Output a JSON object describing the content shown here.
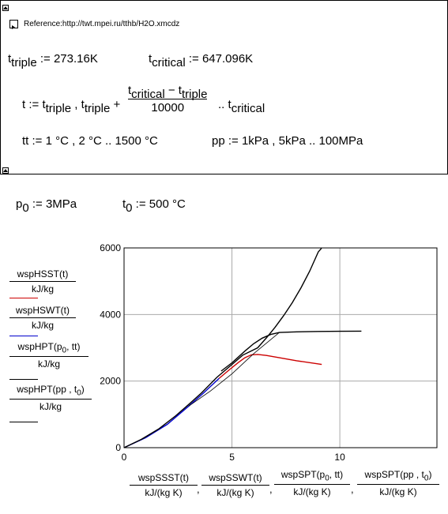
{
  "reference": {
    "label": "Reference:http://twt.mpei.ru/tthb/H2O.xmcdz"
  },
  "definitions": {
    "t_triple": {
      "name": "t",
      "sub": "triple",
      "op": " := ",
      "value": "273.16K"
    },
    "t_critical": {
      "name": "t",
      "sub": "critical",
      "op": " := ",
      "value": "647.096K"
    },
    "t_range": {
      "lhs": "t :=",
      "first_name": "t",
      "first_sub": "triple",
      "second_name": "t",
      "second_sub": "triple",
      "plus": "+",
      "num_a_name": "t",
      "num_a_sub": "critical",
      "minus": " − ",
      "num_b_name": "t",
      "num_b_sub": "triple",
      "den": "10000",
      "dots": "..",
      "last_name": "t",
      "last_sub": "critical"
    },
    "tt": {
      "expr": "tt := 1 °C , 2 °C .. 1500 °C"
    },
    "pp": {
      "expr": "pp := 1kPa , 5kPa .. 100MPa"
    },
    "p0": {
      "name": "p",
      "sub": "0",
      "op": " := ",
      "value": "3MPa"
    },
    "t0": {
      "name": "t",
      "sub": "0",
      "op": " := ",
      "value": "500 °C"
    }
  },
  "y_legend": [
    {
      "num": "wspHSST(t)",
      "den": "kJ/kg",
      "color": "#cc0000"
    },
    {
      "num": "wspHSWT(t)",
      "den": "kJ/kg",
      "color": "#0000cc"
    },
    {
      "num_prefix": "wspHPT(p",
      "num_sub": "0",
      "num_suffix": ", tt)",
      "den": "kJ/kg",
      "color": "#000000"
    },
    {
      "num_prefix": "wspHPT(pp , t",
      "num_sub": "0",
      "num_suffix": ")",
      "den": "kJ/kg",
      "color": "#000000"
    }
  ],
  "x_legend": [
    {
      "num": "wspSSST(t)",
      "den": "kJ/(kg K)"
    },
    {
      "num": "wspSSWT(t)",
      "den": "kJ/(kg K)"
    },
    {
      "num_prefix": "wspSPT(p",
      "num_sub": "0",
      "num_suffix": ", tt)",
      "den": "kJ/(kg K)"
    },
    {
      "num_prefix": "wspSPT(pp , t",
      "num_sub": "0",
      "num_suffix": ")",
      "den": "kJ/(kg K)"
    }
  ],
  "chart_data": {
    "type": "line",
    "xlim": [
      0,
      14.5
    ],
    "ylim": [
      0,
      6000
    ],
    "x_ticks": [
      0,
      5,
      10
    ],
    "y_ticks": [
      0,
      2000,
      4000,
      6000
    ],
    "x_tick_labels": [
      "0",
      "5",
      "10"
    ],
    "y_tick_labels": [
      "0",
      "2000",
      "4000",
      "6000"
    ],
    "grid": true,
    "series": [
      {
        "key": "saturated-steam",
        "color": "#cc0000",
        "points": [
          [
            4.41,
            2084
          ],
          [
            4.9,
            2350
          ],
          [
            5.3,
            2560
          ],
          [
            5.6,
            2700
          ],
          [
            5.9,
            2790
          ],
          [
            6.2,
            2800
          ],
          [
            6.6,
            2770
          ],
          [
            7.2,
            2700
          ],
          [
            8.0,
            2610
          ],
          [
            9.16,
            2500
          ]
        ]
      },
      {
        "key": "saturated-water",
        "color": "#0000cc",
        "points": [
          [
            0.0,
            0
          ],
          [
            1.0,
            300
          ],
          [
            2.0,
            700
          ],
          [
            3.0,
            1250
          ],
          [
            3.7,
            1650
          ],
          [
            4.41,
            2084
          ]
        ]
      },
      {
        "key": "isobar-p0",
        "color": "#000000",
        "points": [
          [
            0.0,
            0
          ],
          [
            0.8,
            250
          ],
          [
            1.6,
            560
          ],
          [
            2.4,
            960
          ],
          [
            3.0,
            1300
          ],
          [
            3.6,
            1650
          ],
          [
            4.3,
            2110
          ],
          [
            5.0,
            2500
          ],
          [
            5.5,
            2780
          ],
          [
            6.19,
            3000
          ],
          [
            6.6,
            3300
          ],
          [
            7.0,
            3620
          ],
          [
            7.4,
            3970
          ],
          [
            7.8,
            4360
          ],
          [
            8.2,
            4800
          ],
          [
            8.6,
            5300
          ],
          [
            9.0,
            5880
          ],
          [
            9.15,
            5990
          ]
        ]
      },
      {
        "key": "isotherm-t0",
        "color": "#000000",
        "points": [
          [
            4.5,
            2300
          ],
          [
            5.0,
            2550
          ],
          [
            5.6,
            2900
          ],
          [
            6.0,
            3120
          ],
          [
            6.4,
            3290
          ],
          [
            6.8,
            3400
          ],
          [
            7.2,
            3460
          ],
          [
            8.0,
            3480
          ],
          [
            9.0,
            3490
          ],
          [
            10.0,
            3495
          ],
          [
            11.0,
            3500
          ]
        ]
      },
      {
        "key": "thin-link",
        "color": "#000000",
        "points": [
          [
            3.0,
            1250
          ],
          [
            4.0,
            1700
          ],
          [
            5.0,
            2220
          ],
          [
            6.0,
            2820
          ],
          [
            7.2,
            3460
          ]
        ]
      }
    ]
  }
}
